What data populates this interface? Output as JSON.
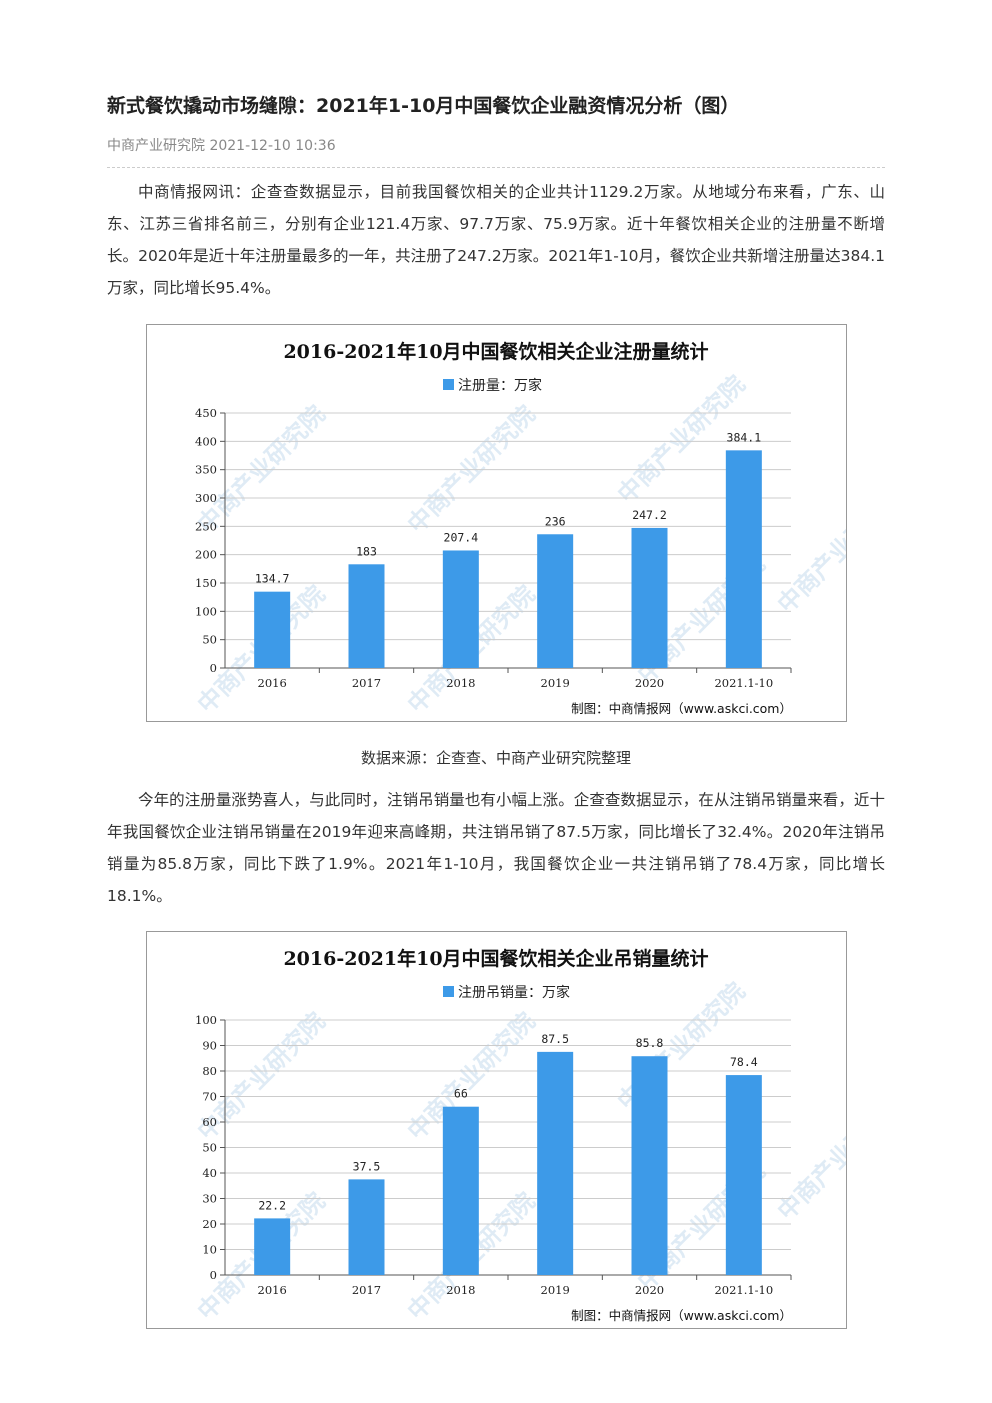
{
  "article": {
    "title": "新式餐饮撬动市场缝隙：2021年1-10月中国餐饮企业融资情况分析（图）",
    "meta": "中商产业研究院 2021-12-10 10:36",
    "paragraph1": "中商情报网讯：企查查数据显示，目前我国餐饮相关的企业共计1129.2万家。从地域分布来看，广东、山东、江苏三省排名前三，分别有企业121.4万家、97.7万家、75.9万家。近十年餐饮相关企业的注册量不断增长。2020年是近十年注册量最多的一年，共注册了247.2万家。2021年1-10月，餐饮企业共新增注册量达384.1万家，同比增长95.4%。",
    "source": "数据来源：企查查、中商产业研究院整理",
    "paragraph2": "今年的注册量涨势喜人，与此同时，注销吊销量也有小幅上涨。企查查数据显示，在从注销吊销量来看，近十年我国餐饮企业注销吊销量在2019年迎来高峰期，共注销吊销了87.5万家，同比增长了32.4%。2020年注销吊销量为85.8万家，同比下跌了1.9%。2021年1-10月，我国餐饮企业一共注销吊销了78.4万家，同比增长18.1%。"
  },
  "watermark": "中商产业研究院",
  "colors": {
    "bar": "#3d9ae8",
    "grid": "#cccccc"
  },
  "chart_data": [
    {
      "type": "bar",
      "title": "2016-2021年10月中国餐饮相关企业注册量统计",
      "categories": [
        "2016",
        "2017",
        "2018",
        "2019",
        "2020",
        "2021.1-10"
      ],
      "series": [
        {
          "name": "注册量：万家",
          "values": [
            134.7,
            183,
            207.4,
            236,
            247.2,
            384.1
          ]
        }
      ],
      "value_labels": [
        "134.7",
        "183",
        "207.4",
        "236",
        "247.2",
        "384.1"
      ],
      "yticks": [
        "0",
        "50",
        "100",
        "150",
        "200",
        "250",
        "300",
        "350",
        "400",
        "450"
      ],
      "ylim": [
        0,
        450
      ],
      "grid": true,
      "legend": "top",
      "credit": "制图：中商情报网（www.askci.com）"
    },
    {
      "type": "bar",
      "title": "2016-2021年10月中国餐饮相关企业吊销量统计",
      "categories": [
        "2016",
        "2017",
        "2018",
        "2019",
        "2020",
        "2021.1-10"
      ],
      "series": [
        {
          "name": "注册吊销量：万家",
          "values": [
            22.2,
            37.5,
            66,
            87.5,
            85.8,
            78.4
          ]
        }
      ],
      "value_labels": [
        "22.2",
        "37.5",
        "66",
        "87.5",
        "85.8",
        "78.4"
      ],
      "yticks": [
        "0",
        "10",
        "20",
        "30",
        "40",
        "50",
        "60",
        "70",
        "80",
        "90",
        "100"
      ],
      "ylim": [
        0,
        100
      ],
      "grid": true,
      "legend": "top",
      "credit": "制图：中商情报网（www.askci.com）"
    }
  ]
}
